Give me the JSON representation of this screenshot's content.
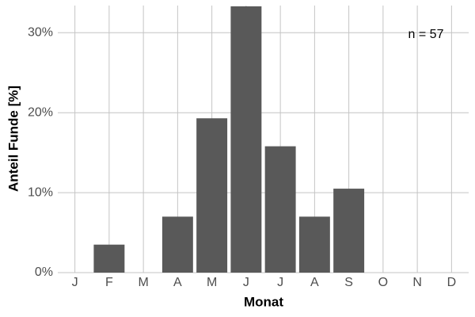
{
  "chart_data": {
    "type": "bar",
    "categories": [
      "J",
      "F",
      "M",
      "A",
      "M",
      "J",
      "J",
      "A",
      "S",
      "O",
      "N",
      "D"
    ],
    "values": [
      0,
      3.5,
      0,
      7.0,
      19.3,
      33.3,
      15.8,
      7.0,
      10.5,
      0,
      0,
      0
    ],
    "color": "#595959",
    "x_label": "Monat",
    "y_label": "Anteil Funde [%]",
    "annotation": "n = 57",
    "ylim": [
      0,
      33.4
    ],
    "yticks": [
      {
        "value": 0,
        "label": "0%"
      },
      {
        "value": 10,
        "label": "10%"
      },
      {
        "value": 20,
        "label": "20%"
      },
      {
        "value": 30,
        "label": "30%"
      }
    ],
    "grid": true
  }
}
